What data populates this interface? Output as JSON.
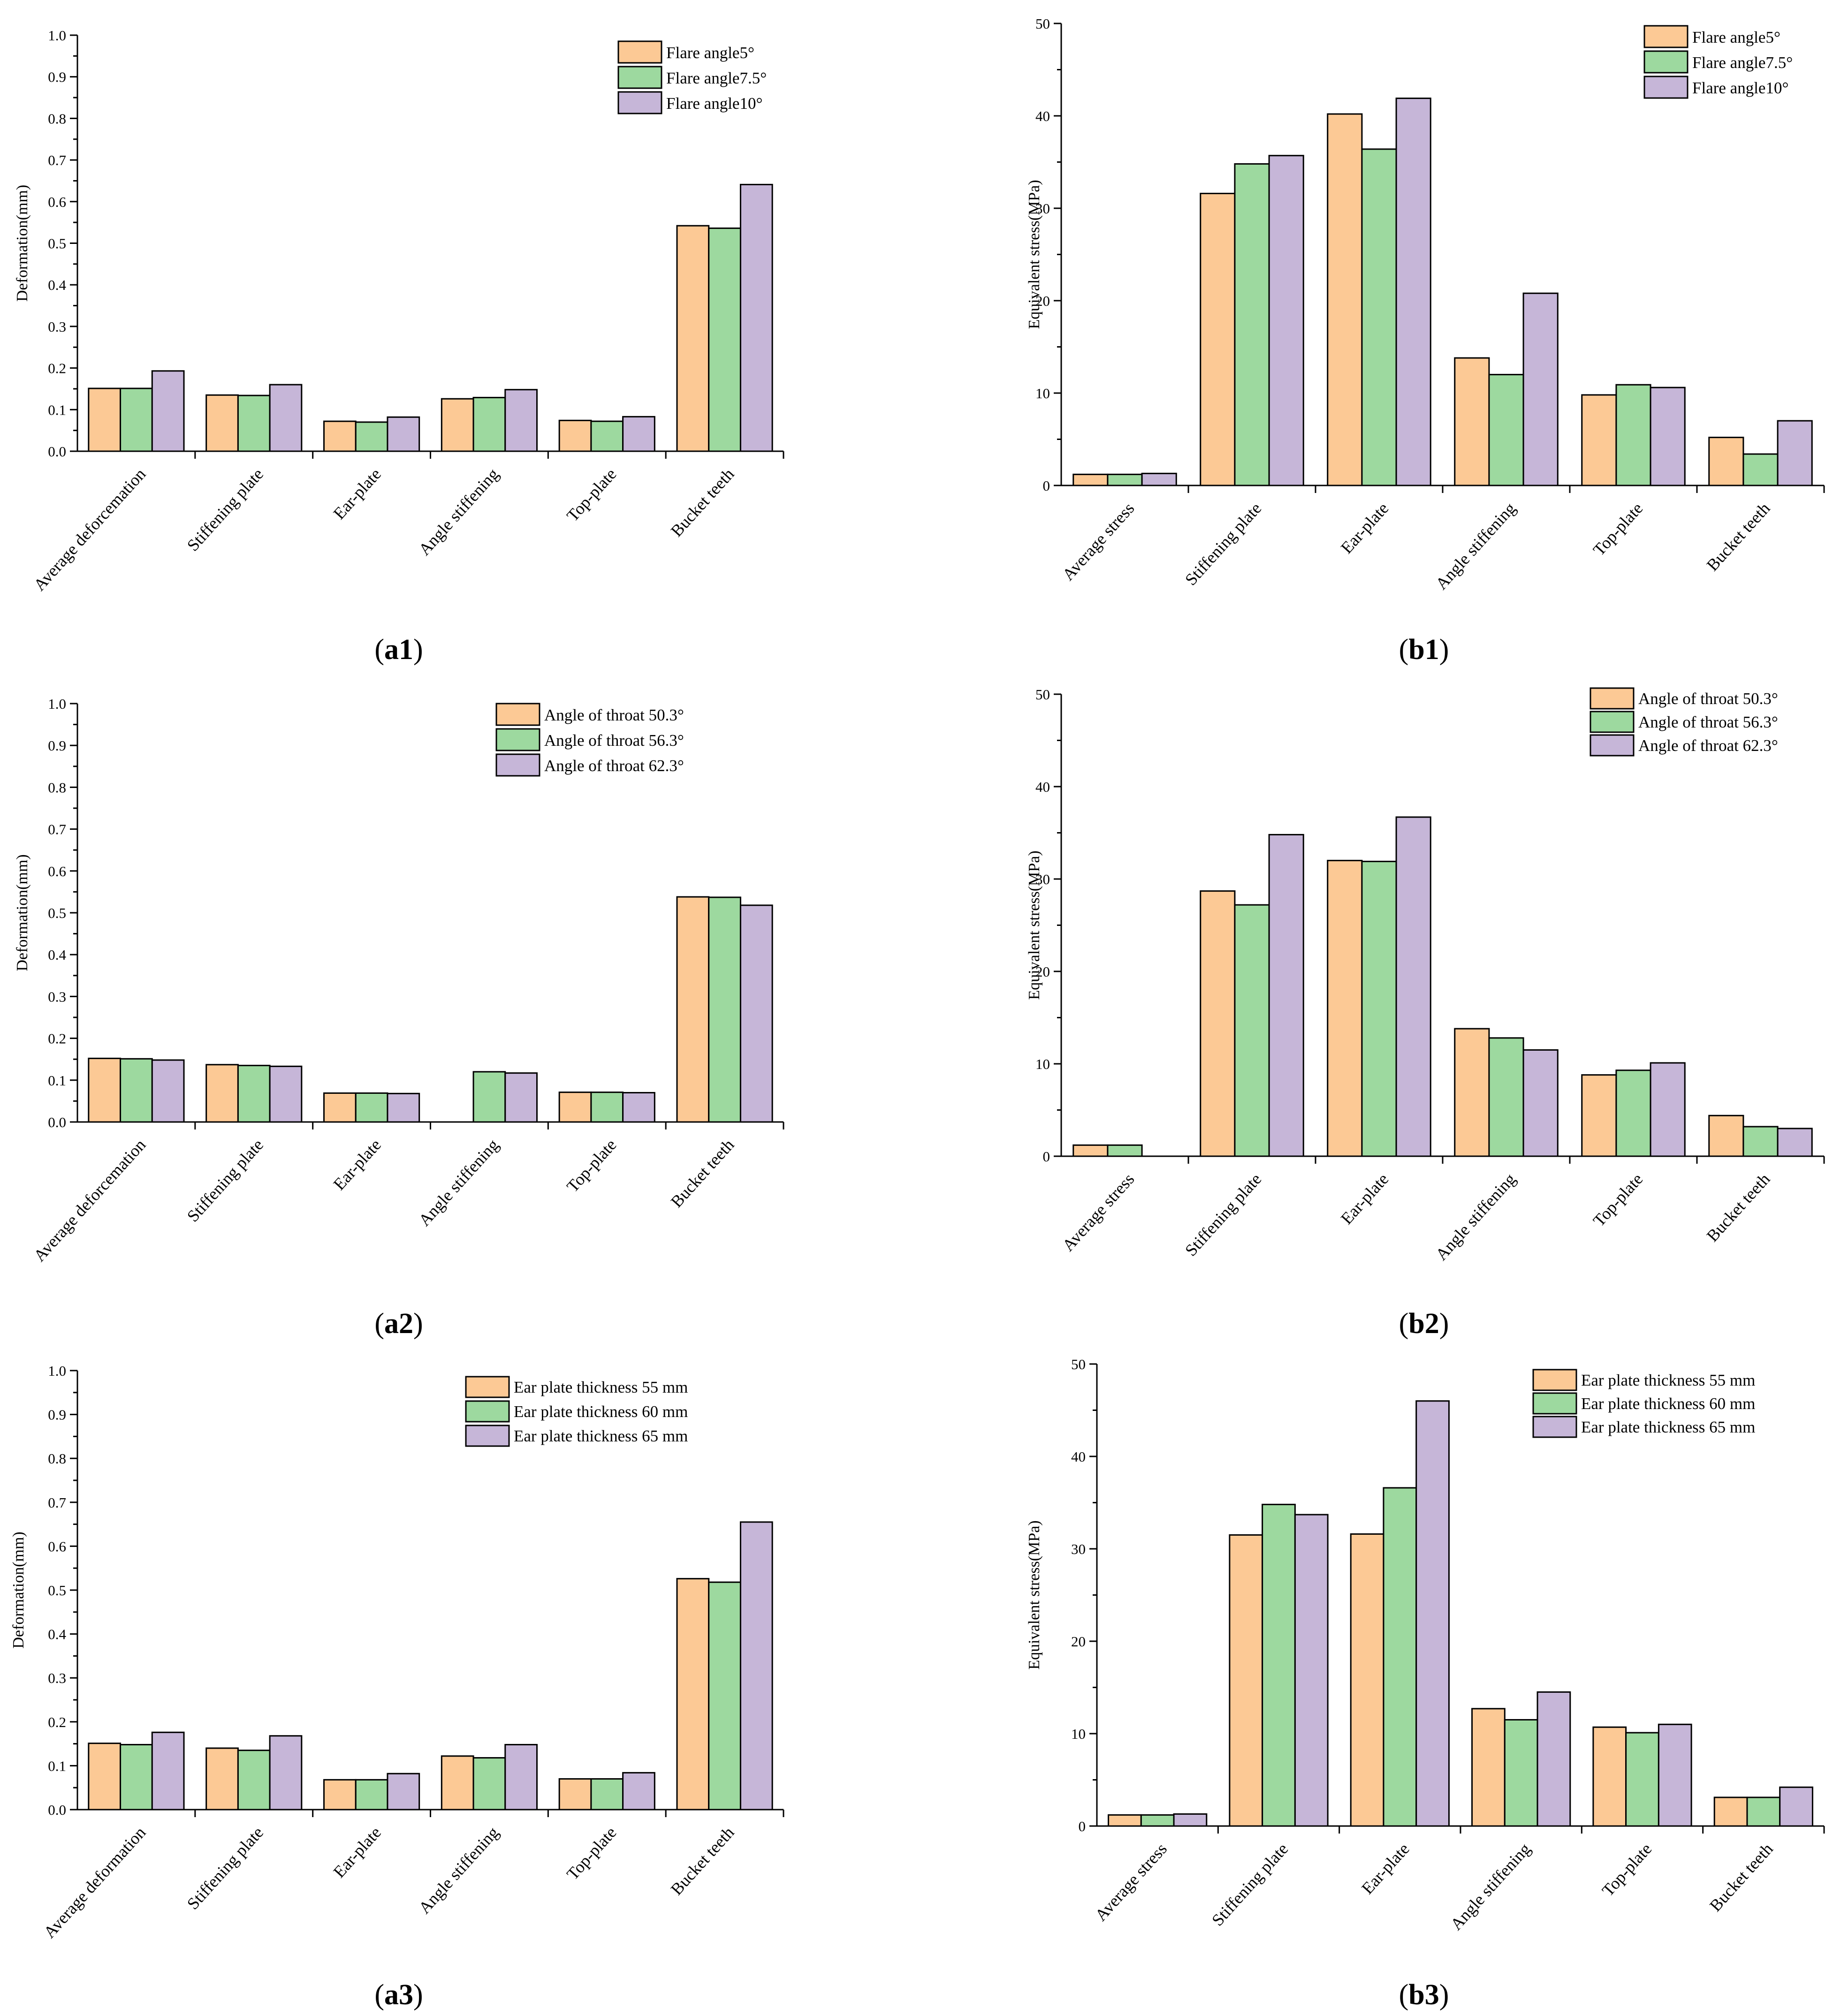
{
  "colors": {
    "series1": "#FCC995",
    "series2": "#9DD99F",
    "series3": "#C6B6D8",
    "stroke": "#000000"
  },
  "charts": [
    {
      "caption_prefix": "(",
      "caption_letter": "a1",
      "caption_suffix": ")",
      "chart_data": {
        "type": "bar",
        "ylabel": "Deformation(mm)",
        "ylim": [
          0,
          1.0
        ],
        "yticks": [
          "0.0",
          "0.1",
          "0.2",
          "0.3",
          "0.4",
          "0.5",
          "0.6",
          "0.7",
          "0.8",
          "0.9",
          "1.0"
        ],
        "categories": [
          "Average deforcemation",
          "Stiffening plate",
          "Ear-plate",
          "Angle stiffening",
          "Top-plate",
          "Bucket teeth"
        ],
        "series": [
          {
            "name": "Flare angle5°",
            "values": [
              0.151,
              0.135,
              0.072,
              0.126,
              0.074,
              0.542
            ]
          },
          {
            "name": "Flare angle7.5°",
            "values": [
              0.151,
              0.134,
              0.07,
              0.129,
              0.072,
              0.536
            ]
          },
          {
            "name": "Flare angle10°",
            "values": [
              0.193,
              0.16,
              0.082,
              0.148,
              0.083,
              0.641
            ]
          }
        ]
      }
    },
    {
      "caption_prefix": "(",
      "caption_letter": "b1",
      "caption_suffix": ")",
      "chart_data": {
        "type": "bar",
        "ylabel": "Equivalent stress(MPa)",
        "ylim": [
          0,
          50
        ],
        "yticks": [
          "0",
          "10",
          "20",
          "30",
          "40",
          "50"
        ],
        "categories": [
          "Average stress",
          "Stiffening plate",
          "Ear-plate",
          "Angle stiffening",
          "Top-plate",
          "Bucket teeth"
        ],
        "series": [
          {
            "name": "Flare angle5°",
            "values": [
              1.2,
              31.6,
              40.2,
              13.8,
              9.8,
              5.2
            ]
          },
          {
            "name": "Flare angle7.5°",
            "values": [
              1.2,
              34.8,
              36.4,
              12.0,
              10.9,
              3.4
            ]
          },
          {
            "name": "Flare angle10°",
            "values": [
              1.3,
              35.7,
              41.9,
              20.8,
              10.6,
              7.0
            ]
          }
        ]
      }
    },
    {
      "caption_prefix": "(",
      "caption_letter": "a2",
      "caption_suffix": ")",
      "chart_data": {
        "type": "bar",
        "ylabel": "Deformation(mm)",
        "ylim": [
          0,
          1.0
        ],
        "yticks": [
          "0.0",
          "0.1",
          "0.2",
          "0.3",
          "0.4",
          "0.5",
          "0.6",
          "0.7",
          "0.8",
          "0.9",
          "1.0"
        ],
        "categories": [
          "Average deforcemation",
          "Stiffening plate",
          "Ear-plate",
          "Angle stiffening",
          "Top-plate",
          "Bucket teeth"
        ],
        "series": [
          {
            "name": "Angle of throat 50.3°",
            "values": [
              0.152,
              0.137,
              0.069,
              0.0,
              0.071,
              0.538
            ]
          },
          {
            "name": "Angle of throat 56.3°",
            "values": [
              0.151,
              0.135,
              0.069,
              0.12,
              0.071,
              0.537
            ]
          },
          {
            "name": "Angle of throat 62.3°",
            "values": [
              0.148,
              0.133,
              0.068,
              0.117,
              0.07,
              0.518
            ]
          }
        ]
      }
    },
    {
      "caption_prefix": "(",
      "caption_letter": "b2",
      "caption_suffix": ")",
      "chart_data": {
        "type": "bar",
        "ylabel": "Equivalent stress(MPa)",
        "ylim": [
          0,
          50
        ],
        "yticks": [
          "0",
          "10",
          "20",
          "30",
          "40",
          "50"
        ],
        "categories": [
          "Average stress",
          "Stiffening plate",
          "Ear-plate",
          "Angle stiffening",
          "Top-plate",
          "Bucket teeth"
        ],
        "series": [
          {
            "name": "Angle of throat 50.3°",
            "values": [
              1.2,
              28.7,
              32.0,
              13.8,
              8.8,
              4.4
            ]
          },
          {
            "name": "Angle of throat 56.3°",
            "values": [
              1.2,
              27.2,
              31.9,
              12.8,
              9.3,
              3.2
            ]
          },
          {
            "name": "Angle of throat 62.3°",
            "values": [
              0.0,
              34.8,
              36.7,
              11.5,
              10.1,
              3.0
            ]
          }
        ]
      }
    },
    {
      "caption_prefix": "(",
      "caption_letter": "a3",
      "caption_suffix": ")",
      "chart_data": {
        "type": "bar",
        "ylabel": "Deformation(mm)",
        "ylim": [
          0,
          1.0
        ],
        "yticks": [
          "0.0",
          "0.1",
          "0.2",
          "0.3",
          "0.4",
          "0.5",
          "0.6",
          "0.7",
          "0.8",
          "0.9",
          "1.0"
        ],
        "categories": [
          "Average deformation",
          "Stiffening plate",
          "Ear-plate",
          "Angle stiffening",
          "Top-plate",
          "Bucket teeth"
        ],
        "series": [
          {
            "name": "Ear plate thickness 55 mm",
            "values": [
              0.151,
              0.14,
              0.068,
              0.122,
              0.07,
              0.526
            ]
          },
          {
            "name": "Ear plate thickness 60 mm",
            "values": [
              0.148,
              0.135,
              0.068,
              0.118,
              0.07,
              0.518
            ]
          },
          {
            "name": "Ear plate thickness 65 mm",
            "values": [
              0.176,
              0.168,
              0.082,
              0.148,
              0.084,
              0.655
            ]
          }
        ]
      }
    },
    {
      "caption_prefix": "(",
      "caption_letter": "b3",
      "caption_suffix": ")",
      "chart_data": {
        "type": "bar",
        "ylabel": "Equivalent stress(MPa)",
        "ylim": [
          0,
          50
        ],
        "yticks": [
          "0",
          "10",
          "20",
          "30",
          "40",
          "50"
        ],
        "categories": [
          "Average stress",
          "Stiffening plate",
          "Ear-plate",
          "Angle stiffening",
          "Top-plate",
          "Bucket teeth"
        ],
        "series": [
          {
            "name": "Ear plate thickness 55 mm",
            "values": [
              1.2,
              31.5,
              31.6,
              12.7,
              10.7,
              3.1
            ]
          },
          {
            "name": "Ear plate thickness 60 mm",
            "values": [
              1.2,
              34.8,
              36.6,
              11.5,
              10.1,
              3.1
            ]
          },
          {
            "name": "Ear plate thickness 65 mm",
            "values": [
              1.3,
              33.7,
              46.0,
              14.5,
              11.0,
              4.2
            ]
          }
        ]
      }
    }
  ]
}
